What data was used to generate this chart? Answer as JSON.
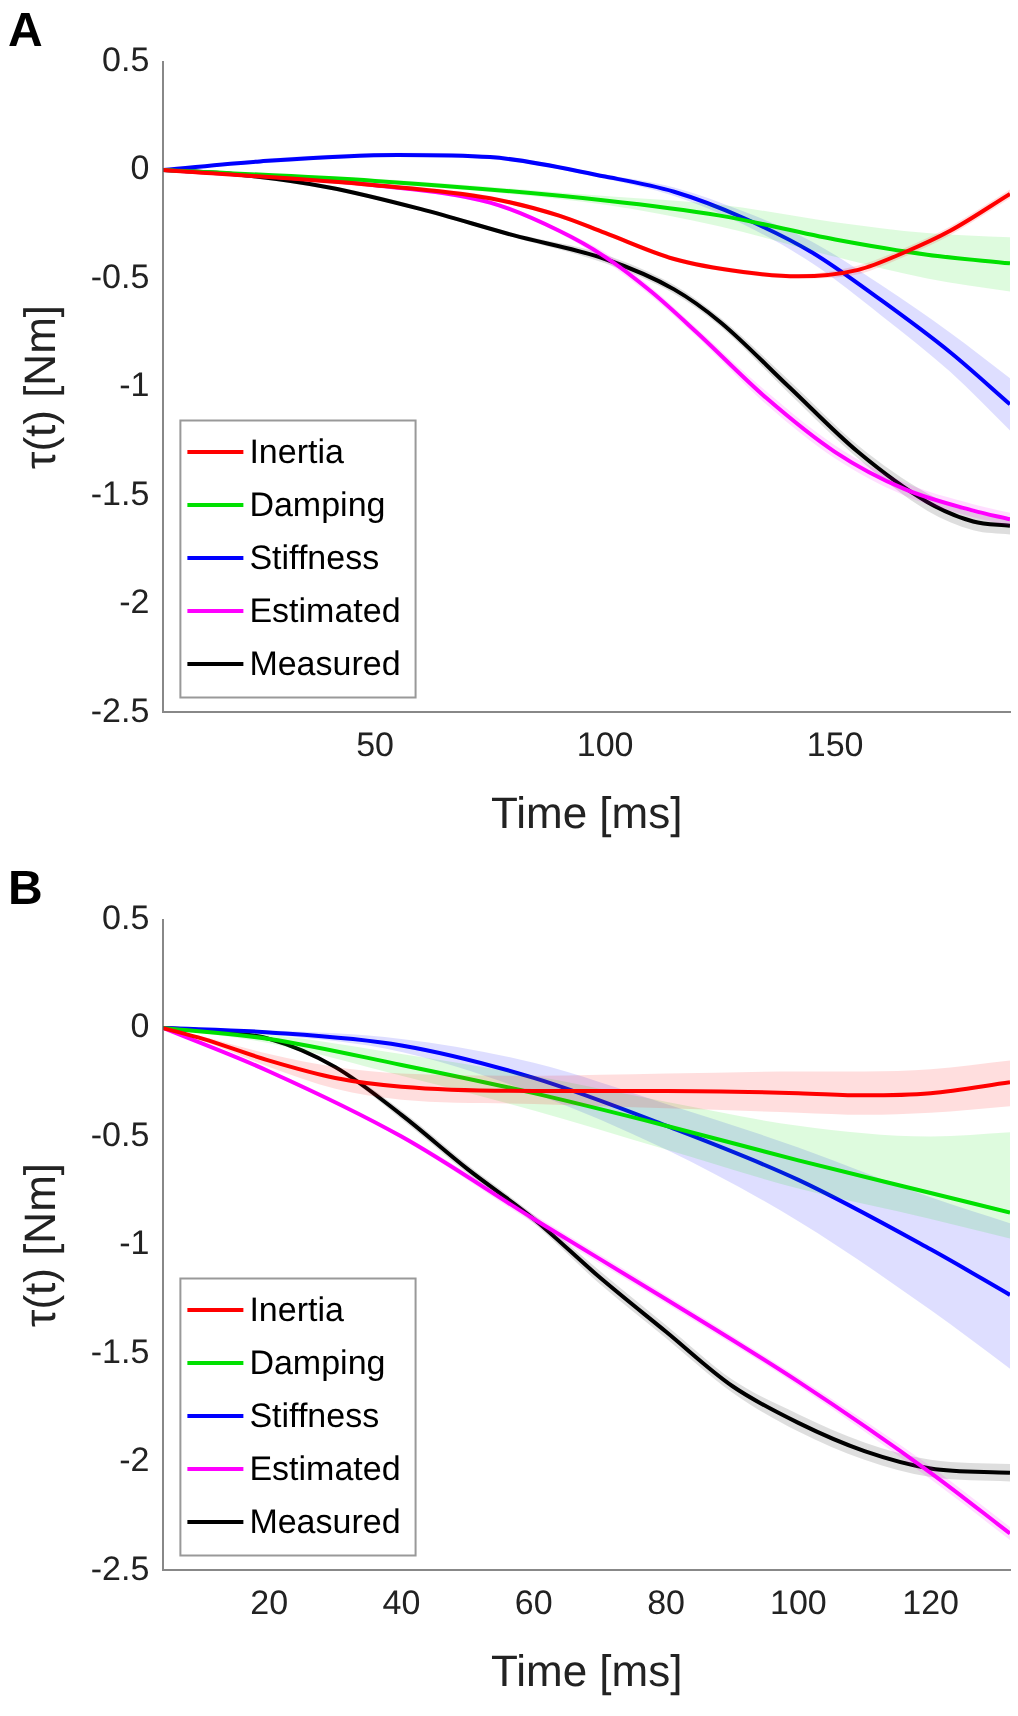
{
  "chart_data": [
    {
      "type": "line",
      "title": "A",
      "xlabel": "Time [ms]",
      "ylabel": "τ(t) [Nm]",
      "xlim": [
        4,
        188
      ],
      "xticks": [
        50,
        100,
        150
      ],
      "ylim": [
        -2.5,
        0.5
      ],
      "yticks": [
        0.5,
        0,
        -0.5,
        -1,
        -1.5,
        -2,
        -2.5
      ],
      "grid": false,
      "legend": "bottom left",
      "marker": "none",
      "line_style": "solid",
      "series": [
        {
          "name": "Inertia",
          "color": "#ff0000",
          "x": [
            4,
            50,
            75,
            90,
            100,
            115,
            130,
            142,
            155,
            165,
            175,
            188
          ],
          "values": [
            0,
            -0.07,
            -0.13,
            -0.21,
            -0.29,
            -0.41,
            -0.47,
            -0.49,
            -0.46,
            -0.38,
            -0.28,
            -0.11
          ],
          "lower": [
            0,
            -0.08,
            -0.14,
            -0.22,
            -0.3,
            -0.42,
            -0.48,
            -0.5,
            -0.48,
            -0.4,
            -0.3,
            -0.13
          ],
          "upper": [
            0,
            -0.06,
            -0.12,
            -0.2,
            -0.28,
            -0.4,
            -0.46,
            -0.48,
            -0.44,
            -0.36,
            -0.26,
            -0.09
          ]
        },
        {
          "name": "Damping",
          "color": "#00e000",
          "x": [
            4,
            50,
            100,
            125,
            150,
            170,
            188
          ],
          "values": [
            0,
            -0.05,
            -0.14,
            -0.21,
            -0.32,
            -0.39,
            -0.43
          ],
          "lower": [
            0,
            -0.06,
            -0.16,
            -0.26,
            -0.4,
            -0.5,
            -0.56
          ],
          "upper": [
            0,
            -0.04,
            -0.12,
            -0.16,
            -0.24,
            -0.29,
            -0.31
          ]
        },
        {
          "name": "Stiffness",
          "color": "#0000ff",
          "x": [
            4,
            25,
            55,
            75,
            100,
            115,
            130,
            145,
            160,
            175,
            188
          ],
          "values": [
            0,
            0.04,
            0.07,
            0.06,
            -0.03,
            -0.1,
            -0.22,
            -0.38,
            -0.6,
            -0.84,
            -1.08
          ],
          "lower": [
            0,
            0.03,
            0.06,
            0.05,
            -0.04,
            -0.12,
            -0.25,
            -0.43,
            -0.67,
            -0.93,
            -1.2
          ],
          "upper": [
            0,
            0.05,
            0.08,
            0.07,
            -0.02,
            -0.08,
            -0.19,
            -0.33,
            -0.53,
            -0.75,
            -0.96
          ]
        },
        {
          "name": "Estimated",
          "color": "#ff00ff",
          "x": [
            4,
            20,
            50,
            75,
            90,
            100,
            110,
            120,
            135,
            150,
            165,
            180,
            188
          ],
          "values": [
            0,
            -0.02,
            -0.07,
            -0.15,
            -0.28,
            -0.4,
            -0.56,
            -0.75,
            -1.05,
            -1.3,
            -1.47,
            -1.57,
            -1.61
          ],
          "lower": [
            0,
            -0.03,
            -0.08,
            -0.16,
            -0.29,
            -0.42,
            -0.58,
            -0.77,
            -1.08,
            -1.33,
            -1.5,
            -1.6,
            -1.64
          ],
          "upper": [
            0,
            -0.01,
            -0.06,
            -0.14,
            -0.27,
            -0.38,
            -0.54,
            -0.73,
            -1.02,
            -1.27,
            -1.44,
            -1.54,
            -1.58
          ]
        },
        {
          "name": "Measured",
          "color": "#000000",
          "x": [
            4,
            20,
            40,
            60,
            80,
            100,
            115,
            125,
            140,
            155,
            170,
            180,
            188
          ],
          "values": [
            0,
            -0.02,
            -0.08,
            -0.18,
            -0.3,
            -0.41,
            -0.55,
            -0.7,
            -1.0,
            -1.3,
            -1.53,
            -1.62,
            -1.64
          ],
          "lower": [
            0,
            -0.03,
            -0.09,
            -0.19,
            -0.31,
            -0.43,
            -0.57,
            -0.72,
            -1.03,
            -1.33,
            -1.57,
            -1.66,
            -1.68
          ],
          "upper": [
            0,
            -0.01,
            -0.07,
            -0.17,
            -0.29,
            -0.39,
            -0.53,
            -0.68,
            -0.97,
            -1.27,
            -1.49,
            -1.58,
            -1.6
          ]
        }
      ]
    },
    {
      "type": "line",
      "title": "B",
      "xlabel": "Time [ms]",
      "ylabel": "τ(t) [Nm]",
      "xlim": [
        4,
        132
      ],
      "xticks": [
        20,
        40,
        60,
        80,
        100,
        120
      ],
      "ylim": [
        -2.5,
        0.5
      ],
      "yticks": [
        0.5,
        0,
        -0.5,
        -1,
        -1.5,
        -2,
        -2.5
      ],
      "grid": false,
      "legend": "bottom left",
      "marker": "none",
      "line_style": "solid",
      "series": [
        {
          "name": "Inertia",
          "color": "#ff0000",
          "x": [
            4,
            10,
            20,
            30,
            40,
            60,
            80,
            100,
            110,
            120,
            132
          ],
          "values": [
            0,
            -0.05,
            -0.15,
            -0.23,
            -0.27,
            -0.29,
            -0.29,
            -0.3,
            -0.31,
            -0.3,
            -0.25
          ],
          "lower": [
            0,
            -0.06,
            -0.18,
            -0.28,
            -0.33,
            -0.35,
            -0.37,
            -0.39,
            -0.4,
            -0.39,
            -0.36
          ],
          "upper": [
            0,
            -0.04,
            -0.12,
            -0.18,
            -0.21,
            -0.22,
            -0.21,
            -0.2,
            -0.2,
            -0.19,
            -0.15
          ]
        },
        {
          "name": "Damping",
          "color": "#00e000",
          "x": [
            4,
            20,
            40,
            60,
            80,
            100,
            120,
            132
          ],
          "values": [
            0,
            -0.05,
            -0.17,
            -0.3,
            -0.45,
            -0.61,
            -0.76,
            -0.85
          ],
          "lower": [
            0,
            -0.07,
            -0.22,
            -0.38,
            -0.56,
            -0.74,
            -0.88,
            -0.97
          ],
          "upper": [
            0,
            -0.03,
            -0.12,
            -0.22,
            -0.34,
            -0.45,
            -0.5,
            -0.48
          ]
        },
        {
          "name": "Stiffness",
          "color": "#0000ff",
          "x": [
            4,
            20,
            40,
            60,
            80,
            100,
            120,
            132
          ],
          "values": [
            0,
            -0.02,
            -0.08,
            -0.23,
            -0.45,
            -0.7,
            -1.02,
            -1.23
          ],
          "lower": [
            0,
            -0.03,
            -0.11,
            -0.3,
            -0.56,
            -0.89,
            -1.3,
            -1.57
          ],
          "upper": [
            0,
            -0.01,
            -0.05,
            -0.16,
            -0.35,
            -0.55,
            -0.78,
            -0.9
          ]
        },
        {
          "name": "Estimated",
          "color": "#ff00ff",
          "x": [
            4,
            20,
            40,
            60,
            80,
            100,
            120,
            132
          ],
          "values": [
            0,
            -0.2,
            -0.5,
            -0.88,
            -1.25,
            -1.63,
            -2.05,
            -2.33
          ],
          "lower": [
            0,
            -0.21,
            -0.51,
            -0.9,
            -1.27,
            -1.65,
            -2.08,
            -2.36
          ],
          "upper": [
            0,
            -0.19,
            -0.49,
            -0.86,
            -1.23,
            -1.61,
            -2.02,
            -2.3
          ]
        },
        {
          "name": "Measured",
          "color": "#000000",
          "x": [
            4,
            10,
            20,
            30,
            40,
            50,
            60,
            70,
            80,
            90,
            100,
            110,
            120,
            132
          ],
          "values": [
            0,
            -0.01,
            -0.05,
            -0.18,
            -0.4,
            -0.65,
            -0.88,
            -1.15,
            -1.4,
            -1.65,
            -1.82,
            -1.95,
            -2.03,
            -2.05
          ],
          "lower": [
            0,
            -0.01,
            -0.06,
            -0.19,
            -0.42,
            -0.67,
            -0.9,
            -1.18,
            -1.43,
            -1.68,
            -1.86,
            -1.99,
            -2.07,
            -2.09
          ],
          "upper": [
            0,
            0,
            -0.04,
            -0.17,
            -0.38,
            -0.63,
            -0.86,
            -1.12,
            -1.37,
            -1.62,
            -1.78,
            -1.91,
            -1.99,
            -2.01
          ]
        }
      ]
    }
  ]
}
